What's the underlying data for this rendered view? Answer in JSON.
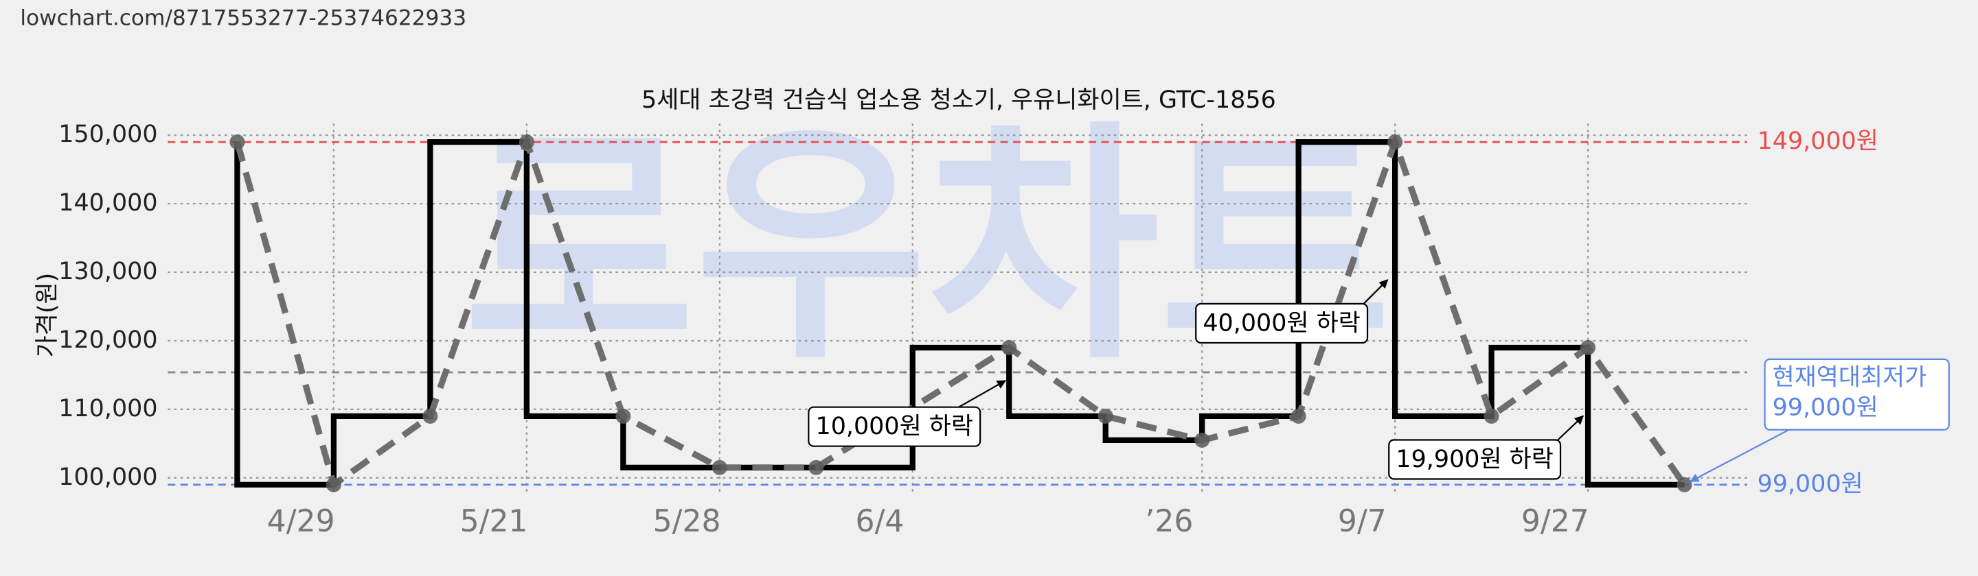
{
  "header": {
    "url": "lowchart.com/8717553277-25374622933"
  },
  "chart_data": {
    "type": "line",
    "title": "5세대 초강력 건습식 업소용 청소기, 우유니화이트, GTC-1856",
    "y_label": "가격(원)",
    "watermark": "로우차트",
    "xlim": [
      -0.72,
      15.65
    ],
    "ylim": [
      98000,
      151700
    ],
    "yticks": [
      {
        "value": 100000,
        "label": "100,000"
      },
      {
        "value": 110000,
        "label": "110,000"
      },
      {
        "value": 120000,
        "label": "120,000"
      },
      {
        "value": 130000,
        "label": "130,000"
      },
      {
        "value": 140000,
        "label": "140,000"
      },
      {
        "value": 150000,
        "label": "150,000"
      }
    ],
    "xticks": [
      {
        "value": 1,
        "label": "4/29"
      },
      {
        "value": 3,
        "label": "5/21"
      },
      {
        "value": 5,
        "label": "5/28"
      },
      {
        "value": 7,
        "label": "6/4"
      },
      {
        "value": 10,
        "label": "’26"
      },
      {
        "value": 12,
        "label": "9/7"
      },
      {
        "value": 14,
        "label": "9/27"
      }
    ],
    "grid": true,
    "series": [
      {
        "style": "step",
        "color": "#000000",
        "x": [
          0,
          0,
          1,
          2,
          3,
          4,
          5,
          6,
          7,
          8,
          9,
          10,
          11,
          12,
          13,
          14,
          15
        ],
        "values": [
          149000,
          99000,
          109000,
          149000,
          109000,
          101500,
          101500,
          101500,
          119000,
          109000,
          105500,
          109000,
          149000,
          109000,
          119000,
          99000,
          99000
        ]
      },
      {
        "style": "dashed",
        "color": "#6e6e6e",
        "markers": true,
        "x": [
          0,
          1,
          2,
          3,
          4,
          5,
          6,
          8,
          9,
          10,
          11,
          12,
          13,
          14,
          15
        ],
        "values": [
          149000,
          99000,
          109000,
          149000,
          109000,
          101500,
          101500,
          119000,
          109000,
          105500,
          109000,
          149000,
          109000,
          119000,
          99000
        ]
      }
    ],
    "reference_lines": [
      {
        "value": 149000,
        "label": "149,000원",
        "color": "#e84e4e"
      },
      {
        "value": 115400,
        "color": "#8a8a8a"
      },
      {
        "value": 99000,
        "label": "99,000원",
        "color": "#5b86e5"
      }
    ],
    "annotations": [
      {
        "text": "40,000원 하락"
      },
      {
        "text": "10,000원 하락"
      },
      {
        "text": "19,900원 하락"
      }
    ],
    "callout": {
      "lines": [
        "현재역대최저가",
        "99,000원"
      ],
      "color": "#5b86e5"
    }
  }
}
